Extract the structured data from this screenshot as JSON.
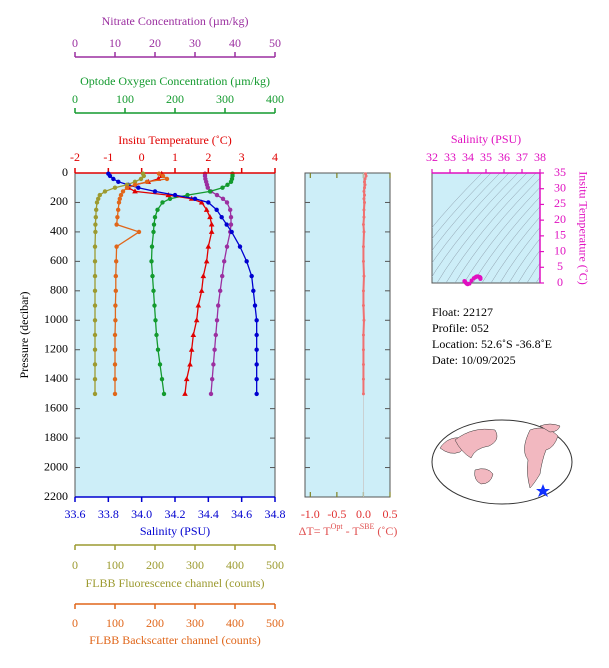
{
  "chart_data": [
    {
      "type": "profile",
      "ylabel": "Pressure (decibar)",
      "ylim": [
        0,
        2200
      ],
      "yticks": [
        0,
        200,
        400,
        600,
        800,
        1000,
        1200,
        1400,
        1600,
        1800,
        2000,
        2200
      ],
      "pressure": [
        5,
        20,
        40,
        60,
        80,
        100,
        125,
        150,
        175,
        200,
        250,
        300,
        350,
        400,
        500,
        600,
        700,
        800,
        900,
        1000,
        1100,
        1200,
        1300,
        1400,
        1500
      ],
      "series": [
        {
          "name": "Nitrate Concentration (µm/kg)",
          "color": "#9b2fa0",
          "axis_side": "top",
          "marker": "circle",
          "xlim": [
            0,
            50
          ],
          "xticks": [
            0,
            10,
            20,
            30,
            40,
            50
          ],
          "values": [
            32.5,
            32.5,
            32.6,
            32.8,
            33,
            33.2,
            34,
            35.5,
            37,
            38,
            38.8,
            39,
            39,
            38.8,
            38,
            37.3,
            36.8,
            36.3,
            35.8,
            35.5,
            35.2,
            34.9,
            34.6,
            34.3,
            34
          ]
        },
        {
          "name": "Optode Oxygen Concentration (µm/kg)",
          "color": "#139a2e",
          "axis_side": "top",
          "marker": "circle",
          "xlim": [
            0,
            400
          ],
          "xticks": [
            0,
            100,
            200,
            300,
            400
          ],
          "values": [
            315,
            315,
            314,
            312,
            305,
            295,
            270,
            225,
            190,
            175,
            165,
            160,
            158,
            157,
            154,
            153,
            155,
            157,
            159,
            161,
            163,
            166,
            170,
            174,
            178
          ]
        },
        {
          "name": "Insitu Temperature (˚C)",
          "color": "#e00000",
          "axis_side": "top",
          "marker": "triangle",
          "xlim": [
            -2,
            4
          ],
          "xticks": [
            -2,
            -1,
            0,
            1,
            2,
            3,
            4
          ],
          "values": [
            0.6,
            0.6,
            0.5,
            0.2,
            -0.2,
            -0.4,
            -0.2,
            0.8,
            1.5,
            1.8,
            1.95,
            2.05,
            2.1,
            2.1,
            2.0,
            1.95,
            1.85,
            1.8,
            1.7,
            1.65,
            1.55,
            1.5,
            1.45,
            1.35,
            1.3
          ]
        },
        {
          "name": "Salinity (PSU)",
          "color": "#0000d0",
          "axis_side": "bottom",
          "marker": "circle",
          "xlim": [
            33.6,
            34.8
          ],
          "xticks": [
            33.6,
            33.8,
            {
              "value": 34,
              "label": "34.0"
            },
            34.2,
            34.4,
            34.6,
            34.8
          ],
          "values": [
            33.8,
            33.81,
            33.83,
            33.86,
            33.92,
            33.98,
            34.08,
            34.2,
            34.32,
            34.4,
            34.45,
            34.48,
            34.51,
            34.54,
            34.59,
            34.63,
            34.66,
            34.67,
            34.68,
            34.69,
            34.69,
            34.69,
            34.69,
            34.69,
            34.69
          ]
        },
        {
          "name": "FLBB Fluorescence channel (counts)",
          "color": "#9c9a30",
          "axis_side": "bottom",
          "marker": "circle",
          "xlim": [
            0,
            500
          ],
          "xticks": [
            0,
            100,
            200,
            300,
            400,
            500
          ],
          "values": [
            170,
            172,
            165,
            150,
            130,
            100,
            75,
            62,
            58,
            55,
            53,
            52,
            51,
            51,
            50,
            50,
            50,
            50,
            50,
            50,
            50,
            50,
            50,
            50,
            50
          ]
        },
        {
          "name": "FLBB Backscatter channel (counts)",
          "color": "#e0661a",
          "axis_side": "bottom",
          "marker": "circle",
          "xlim": [
            0,
            500
          ],
          "xticks": [
            0,
            100,
            200,
            300,
            400,
            500
          ],
          "values": [
            210,
            220,
            230,
            180,
            150,
            130,
            120,
            115,
            112,
            110,
            108,
            106,
            104,
            160,
            104,
            103,
            102,
            102,
            101,
            101,
            100,
            100,
            100,
            100,
            100
          ]
        }
      ]
    },
    {
      "type": "delta",
      "xlabel": [
        "ΔT= T",
        "Opt",
        " - T",
        "SBE",
        " (˚C)"
      ],
      "color": "#f07070",
      "xlim": [
        -1.1,
        0.5
      ],
      "xticks": [
        {
          "value": -1,
          "label": "-1.0"
        },
        -0.5,
        {
          "value": 0,
          "label": "0.0"
        },
        0.5
      ],
      "values": [
        0.04,
        0.05,
        0.03,
        0.02,
        0.03,
        0.02,
        0.01,
        0.02,
        0.01,
        0.02,
        0.01,
        0.01,
        0,
        0.01,
        0,
        0,
        0.01,
        0,
        0,
        0.01,
        0,
        0,
        0,
        0,
        0
      ]
    },
    {
      "type": "ts",
      "title": "Salinity (PSU)",
      "ylabel": "Insitu Temperature (˚C)",
      "color": "#e010c0",
      "xlim": [
        32,
        38
      ],
      "xticks": [
        32,
        33,
        34,
        35,
        36,
        37,
        38
      ],
      "ylim": [
        0,
        35
      ],
      "yticks": [
        0,
        5,
        10,
        15,
        20,
        25,
        30,
        35
      ]
    }
  ],
  "float_info": [
    "Float:  22127",
    "Profile:  052",
    "Location:  52.6˚S  -36.8˚E",
    "Date:  10/09/2025"
  ]
}
